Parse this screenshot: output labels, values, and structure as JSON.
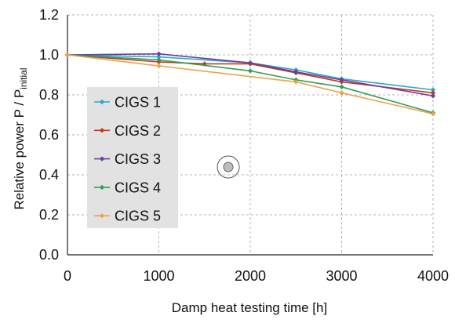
{
  "chart_data": {
    "type": "line",
    "xlabel": "Damp heat testing time [h]",
    "ylabel_main": "Relative power P / P",
    "ylabel_subscript": "initial",
    "xlim": [
      0,
      4000
    ],
    "ylim": [
      0,
      1.2
    ],
    "xticks": [
      "0",
      "1000",
      "2000",
      "3000",
      "4000"
    ],
    "yticks": [
      "0.0",
      "0.2",
      "0.4",
      "0.6",
      "0.8",
      "1.0",
      "1.2"
    ],
    "grid": true,
    "legend_position": "left",
    "series": [
      {
        "name": "CIGS 1",
        "color": "#2aa9c9",
        "points": [
          [
            0,
            1.0
          ],
          [
            1000,
            0.99
          ],
          [
            2000,
            0.96
          ],
          [
            2500,
            0.925
          ],
          [
            3000,
            0.88
          ],
          [
            4000,
            0.825
          ]
        ]
      },
      {
        "name": "CIGS 2",
        "color": "#c4381c",
        "points": [
          [
            0,
            1.0
          ],
          [
            1000,
            0.965
          ],
          [
            1500,
            0.955
          ],
          [
            2000,
            0.955
          ],
          [
            2500,
            0.91
          ],
          [
            3000,
            0.865
          ],
          [
            4000,
            0.81
          ]
        ]
      },
      {
        "name": "CIGS 3",
        "color": "#6b3fa0",
        "points": [
          [
            0,
            1.0
          ],
          [
            1000,
            1.005
          ],
          [
            2000,
            0.96
          ],
          [
            2500,
            0.915
          ],
          [
            3000,
            0.875
          ],
          [
            4000,
            0.795
          ]
        ]
      },
      {
        "name": "CIGS 4",
        "color": "#2e9e58",
        "points": [
          [
            0,
            1.0
          ],
          [
            1000,
            0.975
          ],
          [
            2000,
            0.92
          ],
          [
            2500,
            0.875
          ],
          [
            3000,
            0.84
          ],
          [
            4000,
            0.71
          ]
        ]
      },
      {
        "name": "CIGS 5",
        "color": "#eea24a",
        "points": [
          [
            0,
            1.0
          ],
          [
            1000,
            0.945
          ],
          [
            2500,
            0.865
          ],
          [
            3000,
            0.81
          ],
          [
            4000,
            0.705
          ]
        ]
      }
    ]
  }
}
